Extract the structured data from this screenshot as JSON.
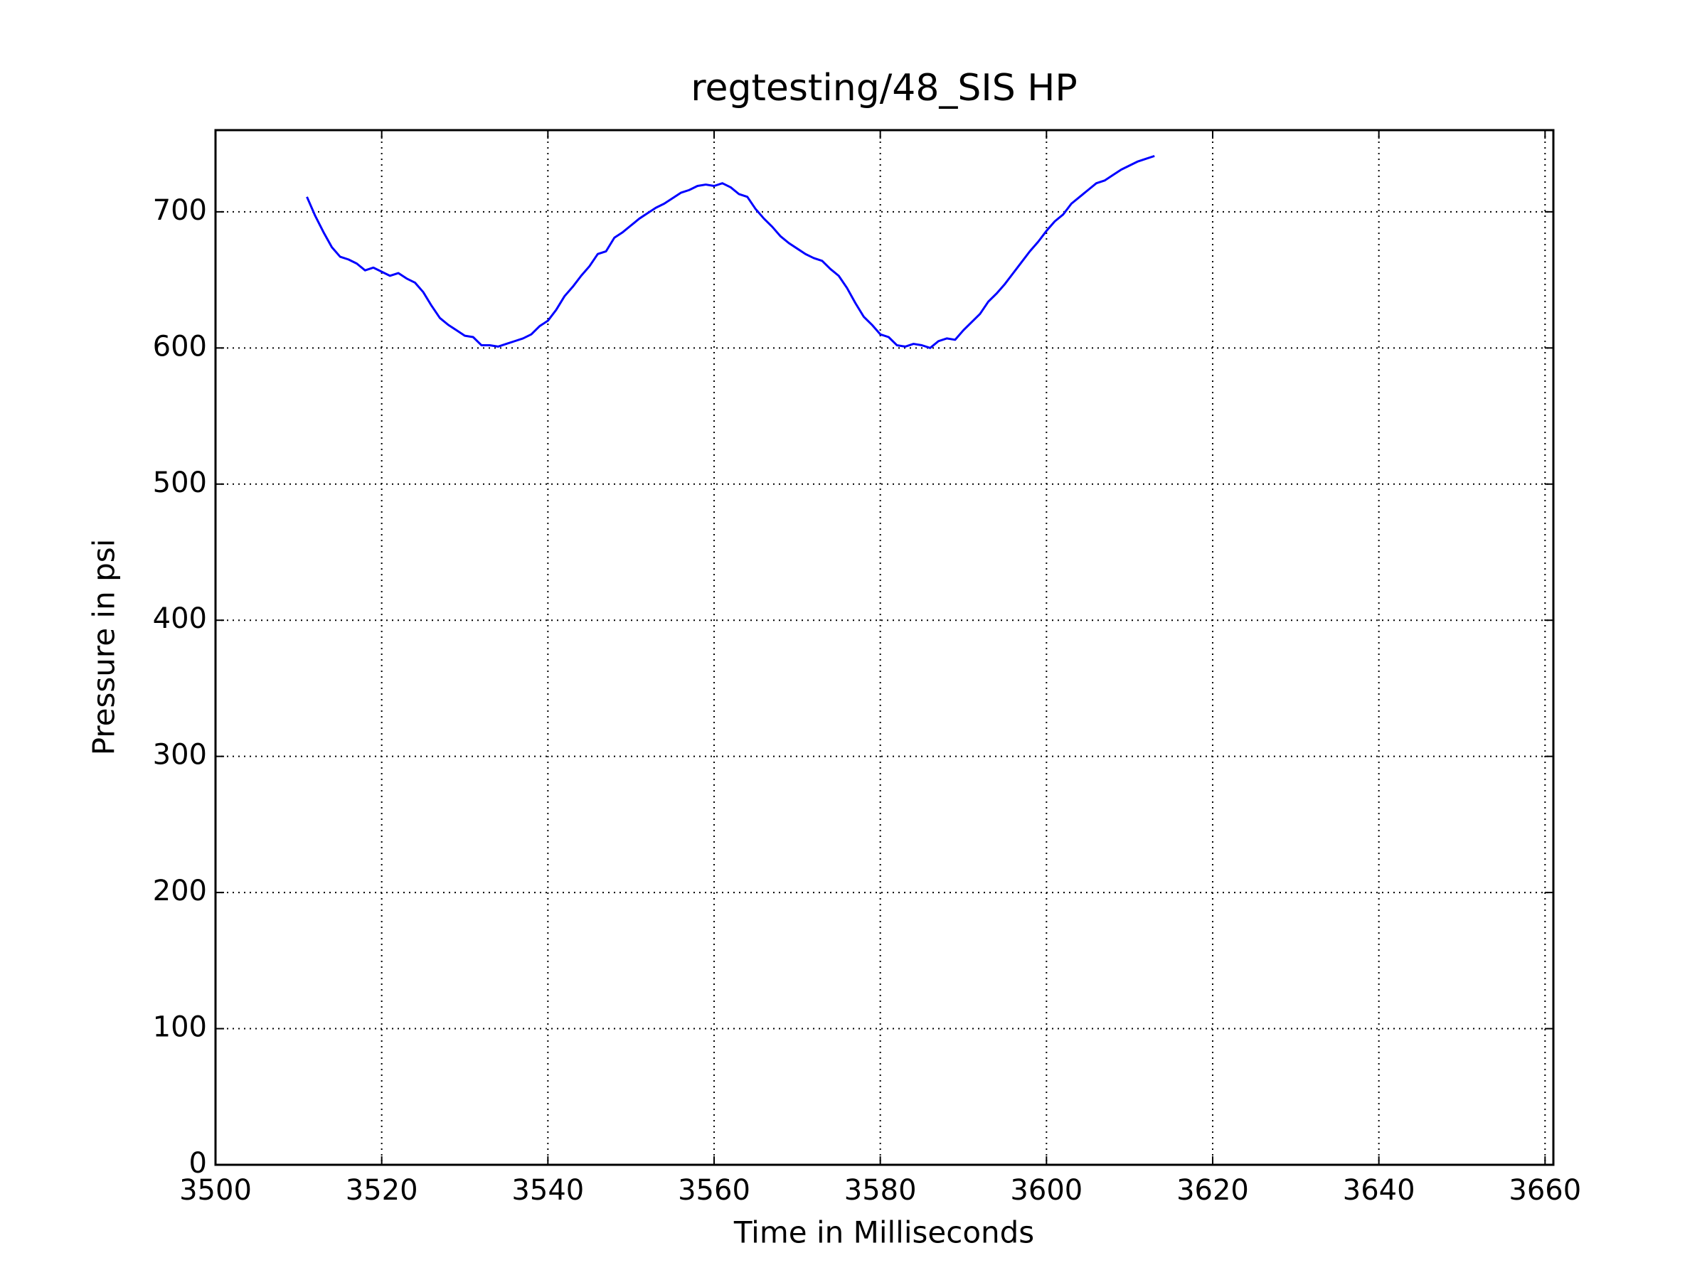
{
  "chart_data": {
    "type": "line",
    "title": "regtesting/48_SIS HP",
    "x_label": "Time in Milliseconds",
    "y_label": "Pressure in psi",
    "x": [
      3511,
      3512,
      3513,
      3514,
      3515,
      3516,
      3517,
      3518,
      3519,
      3520,
      3521,
      3522,
      3523,
      3524,
      3525,
      3526,
      3527,
      3528,
      3529,
      3530,
      3531,
      3532,
      3533,
      3534,
      3535,
      3536,
      3537,
      3538,
      3539,
      3540,
      3541,
      3542,
      3543,
      3544,
      3545,
      3546,
      3547,
      3548,
      3549,
      3550,
      3551,
      3552,
      3553,
      3554,
      3555,
      3556,
      3557,
      3558,
      3559,
      3560,
      3561,
      3562,
      3563,
      3564,
      3565,
      3566,
      3567,
      3568,
      3569,
      3570,
      3571,
      3572,
      3573,
      3574,
      3575,
      3576,
      3577,
      3578,
      3579,
      3580,
      3581,
      3582,
      3583,
      3584,
      3585,
      3586,
      3587,
      3588,
      3589,
      3590,
      3591,
      3592,
      3593,
      3594,
      3595,
      3596,
      3597,
      3598,
      3599,
      3600,
      3601,
      3602,
      3603,
      3604,
      3605,
      3606,
      3607,
      3608,
      3609,
      3610,
      3611,
      3612,
      3613
    ],
    "series": [
      {
        "color": "#0000ff",
        "values": [
          711,
          697,
          685,
          674,
          667,
          665,
          662,
          657,
          659,
          656,
          653,
          655,
          651,
          648,
          641,
          631,
          622,
          617,
          613,
          609,
          608,
          602,
          602,
          601,
          603,
          605,
          607,
          610,
          616,
          620,
          628,
          638,
          645,
          653,
          660,
          669,
          671,
          681,
          685,
          690,
          695,
          699,
          703,
          706,
          710,
          714,
          716,
          719,
          720,
          719,
          721,
          718,
          713,
          711,
          702,
          695,
          689,
          682,
          677,
          673,
          669,
          666,
          664,
          658,
          653,
          644,
          633,
          623,
          617,
          610,
          608,
          602,
          601,
          603,
          602,
          600,
          605,
          607,
          606,
          613,
          619,
          625,
          634,
          640,
          647,
          655,
          663,
          671,
          678,
          686,
          693,
          698,
          706,
          711,
          716,
          721,
          723,
          727,
          731,
          734,
          737,
          739,
          741
        ]
      }
    ],
    "xlim": [
      3500,
      3661
    ],
    "ylim": [
      0,
      760
    ],
    "xticks": [
      3500,
      3520,
      3540,
      3560,
      3580,
      3600,
      3620,
      3640,
      3660
    ],
    "yticks": [
      0,
      100,
      200,
      300,
      400,
      500,
      600,
      700
    ],
    "grid": true
  }
}
